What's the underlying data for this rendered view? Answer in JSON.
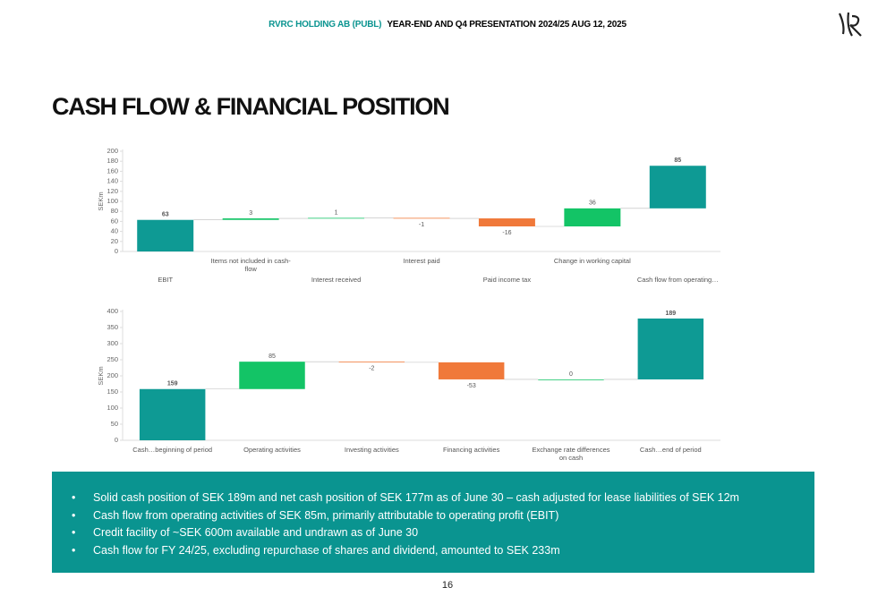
{
  "header": {
    "company": "RVRC HOLDING AB (PUBL)",
    "event": "YEAR-END AND Q4 PRESENTATION 2024/25  AUG 12, 2025"
  },
  "title": "CASH FLOW & FINANCIAL POSITION",
  "chart_data": [
    {
      "type": "waterfall",
      "ylabel": "SEKm",
      "categories": [
        "EBIT",
        "Items not included in cash-flow",
        "Interest received",
        "Interest paid",
        "Paid income tax",
        "Change in working capital",
        "Cash flow from operating…"
      ],
      "values": [
        63,
        3,
        1,
        -1,
        -16,
        36,
        85
      ],
      "colors": [
        "#0e9a94",
        "#13c466",
        "#13c466",
        "#f0793a",
        "#f0793a",
        "#13c466",
        "#0e9a94"
      ],
      "ylim": [
        0,
        200
      ],
      "yticks": [
        0,
        20,
        40,
        60,
        80,
        100,
        120,
        140,
        160,
        180,
        200
      ]
    },
    {
      "type": "waterfall",
      "ylabel": "SEKm",
      "categories": [
        "Cash…beginning of period",
        "Operating activities",
        "Investing activities",
        "Financing activities",
        "Exchange rate differences on cash",
        "Cash…end of period"
      ],
      "values": [
        159,
        85,
        -2,
        -53,
        0,
        189
      ],
      "colors": [
        "#0e9a94",
        "#13c466",
        "#f0793a",
        "#f0793a",
        "#13c466",
        "#0e9a94"
      ],
      "ylim": [
        0,
        400
      ],
      "yticks": [
        0,
        50,
        100,
        150,
        200,
        250,
        300,
        350,
        400
      ]
    }
  ],
  "bullets": [
    "Solid cash position of SEK 189m and net cash position of SEK 177m as of June 30 – cash adjusted for lease liabilities of SEK 12m",
    "Cash flow from operating activities of SEK 85m, primarily attributable to operating profit (EBIT)",
    "Credit facility of ~SEK 600m available and undrawn as of June 30",
    "Cash flow for FY 24/25, excluding repurchase of shares and dividend, amounted to SEK 233m"
  ],
  "page_number": "16"
}
